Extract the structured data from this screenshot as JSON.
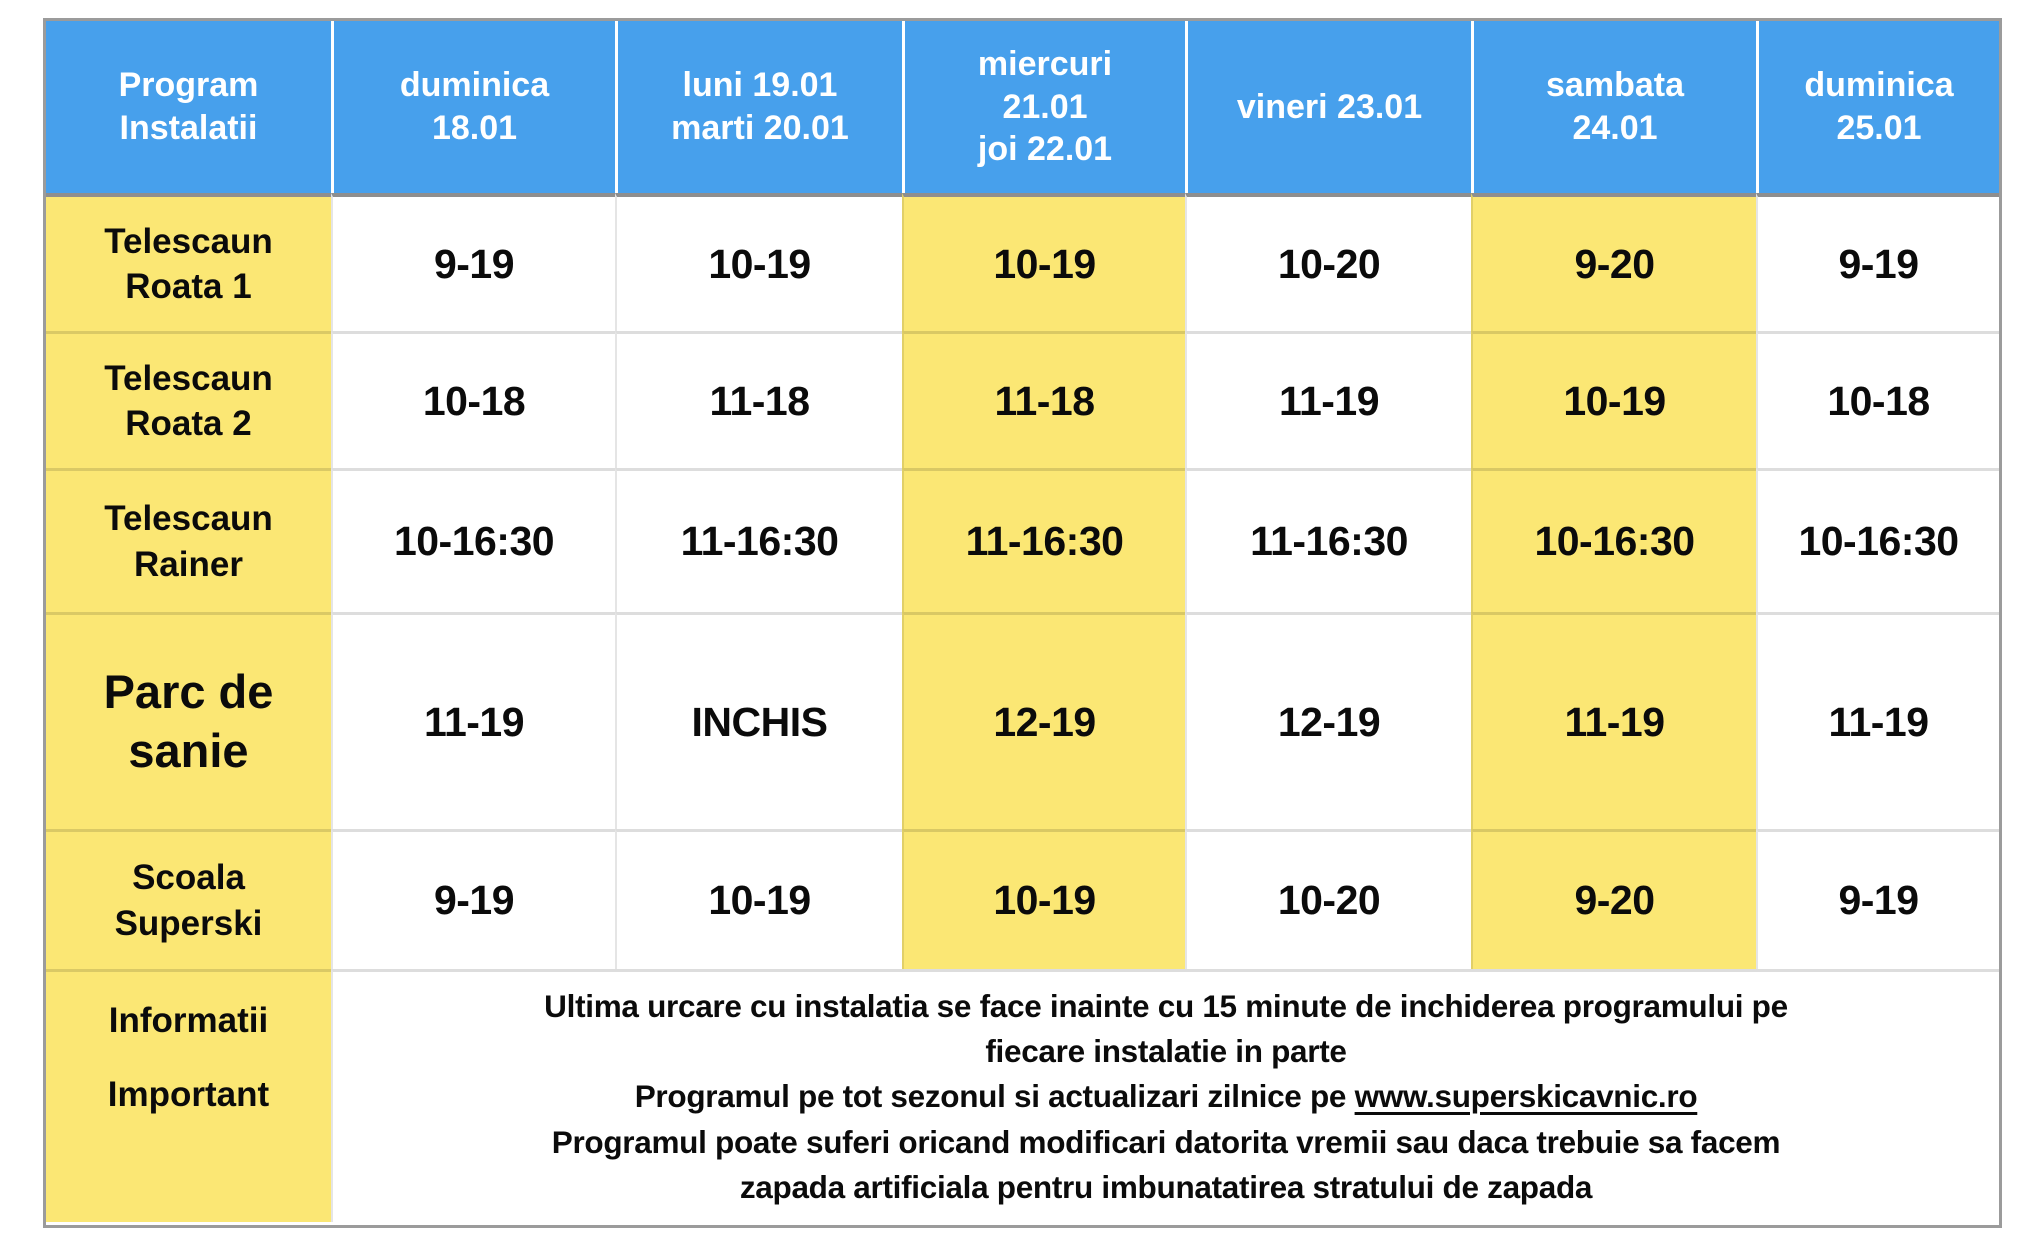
{
  "colors": {
    "header_blue": "#47A0EC",
    "highlight_yellow": "#FBE774",
    "header_text": "#FFFFFF",
    "body_text": "#0B0B0B",
    "grid_line_gray": "#D8D8D8",
    "outer_border_gray": "#9B9B9B"
  },
  "table": {
    "corner_header": "Program\nInstalatii",
    "day_headers": [
      "duminica\n18.01",
      "luni 19.01\nmarti 20.01",
      "miercuri\n21.01\njoi 22.01",
      "vineri 23.01",
      "sambata\n24.01",
      "duminica\n25.01"
    ],
    "highlighted_day_columns": [
      2,
      4
    ],
    "rows": [
      {
        "label": "Telescaun\nRoata 1",
        "values": [
          "9-19",
          "10-19",
          "10-19",
          "10-20",
          "9-20",
          "9-19"
        ]
      },
      {
        "label": "Telescaun\nRoata 2",
        "values": [
          "10-18",
          "11-18",
          "11-18",
          "11-19",
          "10-19",
          "10-18"
        ]
      },
      {
        "label": "Telescaun\nRainer",
        "values": [
          "10-16:30",
          "11-16:30",
          "11-16:30",
          "11-16:30",
          "10-16:30",
          "10-16:30"
        ]
      },
      {
        "label": "Parc de\nsanie",
        "values": [
          "11-19",
          "INCHIS",
          "12-19",
          "12-19",
          "11-19",
          "11-19"
        ]
      },
      {
        "label": "Scoala\nSuperski",
        "values": [
          "9-19",
          "10-19",
          "10-19",
          "10-20",
          "9-20",
          "9-19"
        ]
      }
    ],
    "info": {
      "label_line1": "Informatii",
      "label_line2": "Important",
      "paragraph1": "Ultima urcare cu instalatia se face inainte cu 15 minute de inchiderea programului pe\nfiecare instalatie in parte",
      "paragraph2_prefix": "Programul pe tot sezonul si actualizari zilnice pe ",
      "paragraph2_link": "www.superskicavnic.ro",
      "paragraph3": "Programul poate suferi oricand modificari datorita vremii sau daca trebuie sa facem\nzapada artificiala pentru imbunatatirea stratului de zapada"
    }
  }
}
